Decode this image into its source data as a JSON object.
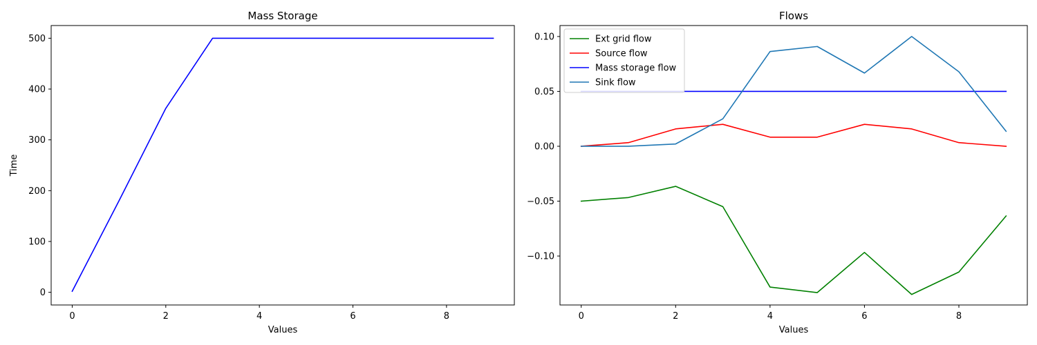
{
  "chart_data": [
    {
      "type": "line",
      "title": "Mass Storage",
      "xlabel": "Values",
      "ylabel": "Time",
      "xlim": [
        -0.45,
        9.45
      ],
      "ylim": [
        -25,
        525
      ],
      "xticks": [
        0,
        2,
        4,
        6,
        8
      ],
      "xtick_labels": [
        "0",
        "2",
        "4",
        "6",
        "8"
      ],
      "yticks": [
        0,
        100,
        200,
        300,
        400,
        500
      ],
      "ytick_labels": [
        "0",
        "100",
        "200",
        "300",
        "400",
        "500"
      ],
      "grid": false,
      "series": [
        {
          "color": "#0000ff",
          "x": [
            0,
            1,
            2,
            3,
            4,
            5,
            6,
            7,
            8,
            9
          ],
          "y": [
            2,
            180,
            362,
            500,
            500,
            500,
            500,
            500,
            500,
            500
          ]
        }
      ]
    },
    {
      "type": "line",
      "title": "Flows",
      "xlabel": "Values",
      "ylabel": "",
      "xlim": [
        -0.45,
        9.45
      ],
      "ylim": [
        -0.1446,
        0.11
      ],
      "xticks": [
        0,
        2,
        4,
        6,
        8
      ],
      "xtick_labels": [
        "0",
        "2",
        "4",
        "6",
        "8"
      ],
      "yticks": [
        -0.1,
        -0.05,
        0.0,
        0.05,
        0.1
      ],
      "ytick_labels": [
        "−0.10",
        "−0.05",
        "0.00",
        "0.05",
        "0.10"
      ],
      "grid": false,
      "legend_position": "top-left",
      "series": [
        {
          "name": "Ext grid flow",
          "color": "#008000",
          "x": [
            0,
            1,
            2,
            3,
            4,
            5,
            6,
            7,
            8,
            9
          ],
          "y": [
            -0.05,
            -0.0467,
            -0.0365,
            -0.055,
            -0.1283,
            -0.1333,
            -0.0967,
            -0.135,
            -0.1146,
            -0.0635
          ]
        },
        {
          "name": "Source flow",
          "color": "#ff0000",
          "x": [
            0,
            1,
            2,
            3,
            4,
            5,
            6,
            7,
            8,
            9
          ],
          "y": [
            0.0,
            0.0033,
            0.0158,
            0.02,
            0.0083,
            0.0083,
            0.02,
            0.0158,
            0.0033,
            0.0
          ]
        },
        {
          "name": "Mass storage flow",
          "color": "#0000ff",
          "x": [
            0,
            1,
            2,
            3,
            4,
            5,
            6,
            7,
            8,
            9
          ],
          "y": [
            0.05,
            0.05,
            0.05,
            0.05,
            0.05,
            0.05,
            0.05,
            0.05,
            0.05,
            0.05
          ]
        },
        {
          "name": "Sink flow",
          "color": "#1f77b4",
          "x": [
            0,
            1,
            2,
            3,
            4,
            5,
            6,
            7,
            8,
            9
          ],
          "y": [
            0.0,
            0.0,
            0.0021,
            0.025,
            0.0863,
            0.0909,
            0.0667,
            0.1,
            0.0679,
            0.0137
          ]
        }
      ]
    }
  ]
}
